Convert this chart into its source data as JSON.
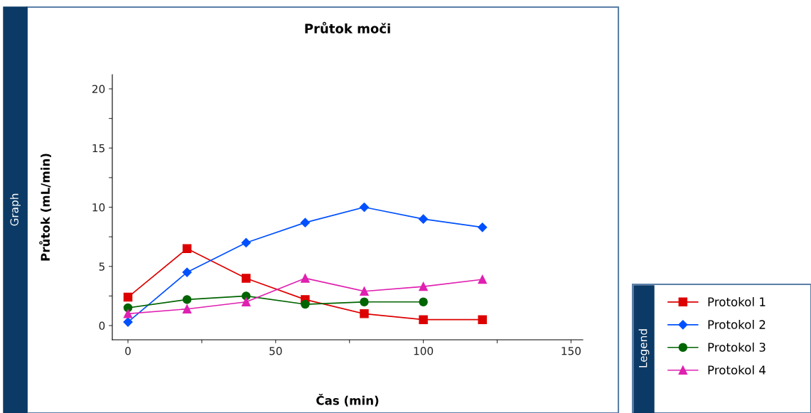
{
  "chart_data": {
    "type": "line",
    "title": "Průtok moči",
    "xlabel": "Čas (min)",
    "ylabel": "Průtok (mL/min)",
    "legend_title": "Legend",
    "annotations": [
      "Graph"
    ],
    "x": [
      0,
      20,
      40,
      60,
      80,
      100,
      120
    ],
    "series": [
      {
        "name": "Protokol 1",
        "color": "#dd0000",
        "marker": "square",
        "values": [
          2.4,
          6.5,
          4.0,
          2.2,
          1.0,
          0.5,
          0.5
        ]
      },
      {
        "name": "Protokol 2",
        "color": "#0050ff",
        "marker": "diamond",
        "values": [
          0.3,
          4.5,
          7.0,
          8.7,
          10.0,
          9.0,
          8.3
        ]
      },
      {
        "name": "Protokol 3",
        "color": "#006400",
        "marker": "circle",
        "values": [
          1.5,
          2.2,
          2.5,
          1.8,
          2.0,
          2.0,
          null
        ]
      },
      {
        "name": "Protokol 4",
        "color": "#e020b0",
        "marker": "triangle",
        "values": [
          1.0,
          1.4,
          2.0,
          4.0,
          2.9,
          3.3,
          3.9
        ]
      }
    ],
    "xlim": [
      -5.3,
      154
    ],
    "ylim": [
      -1.2,
      21.2
    ],
    "xticks": [
      0,
      {
        "value": 25,
        "label": null
      },
      50,
      {
        "value": 75,
        "label": null
      },
      100,
      {
        "value": 125,
        "label": null
      },
      150
    ],
    "yticks": [
      0,
      {
        "value": 2.5,
        "label": null
      },
      5,
      {
        "value": 7.5,
        "label": null
      },
      10,
      {
        "value": 12.5,
        "label": null
      },
      15,
      {
        "value": 17.5,
        "label": null
      },
      20
    ],
    "grid": false,
    "legend": "bottom right",
    "line_style": "solid"
  }
}
